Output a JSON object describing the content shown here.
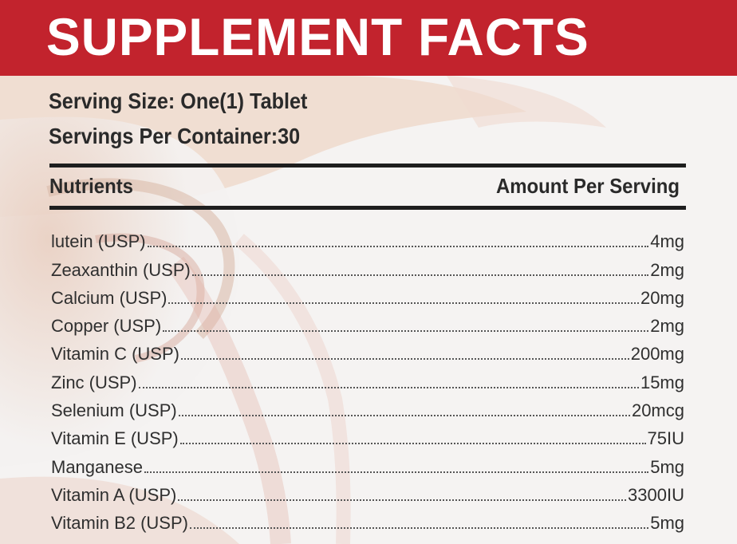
{
  "header": {
    "title": "SUPPLEMENT FACTS",
    "color": "#c2232d"
  },
  "serving": {
    "size": "Serving Size: One(1) Tablet",
    "per_container": "Servings Per Container:30"
  },
  "columns": {
    "left": "Nutrients",
    "right": "Amount Per Serving"
  },
  "nutrients": [
    {
      "name": "lutein (USP)",
      "amount": "4mg"
    },
    {
      "name": "Zeaxanthin (USP)",
      "amount": "2mg"
    },
    {
      "name": "Calcium (USP)",
      "amount": "20mg"
    },
    {
      "name": "Copper (USP)",
      "amount": "2mg"
    },
    {
      "name": "Vitamin C (USP)",
      "amount": "200mg"
    },
    {
      "name": "Zinc (USP)",
      "amount": "15mg"
    },
    {
      "name": "Selenium (USP)",
      "amount": "20mcg"
    },
    {
      "name": "Vitamin E (USP)",
      "amount": "75IU"
    },
    {
      "name": "Manganese",
      "amount": "5mg"
    },
    {
      "name": "Vitamin A (USP)",
      "amount": "3300IU"
    },
    {
      "name": "Vitamin B2 (USP)",
      "amount": "5mg"
    }
  ]
}
